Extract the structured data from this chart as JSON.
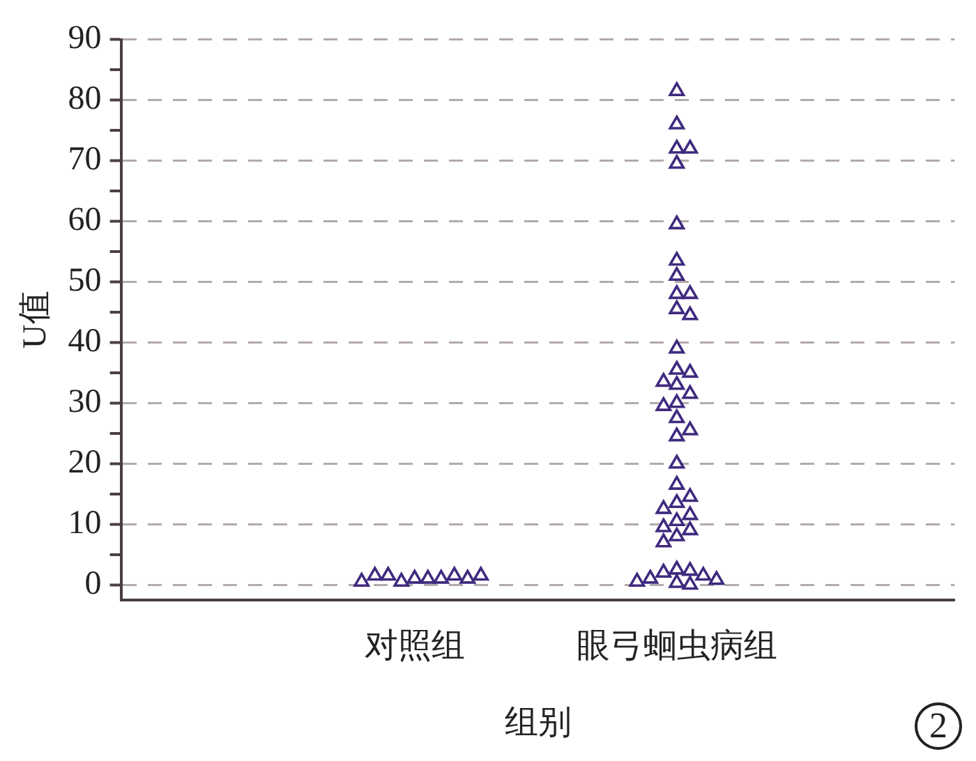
{
  "chart_data": {
    "type": "scatter",
    "xlabel": "组别",
    "ylabel": "U值",
    "categories": [
      "对照组",
      "眼弓蛔虫病组"
    ],
    "series": [
      {
        "color": "#3f2a7f",
        "x": [
          "对照组",
          "对照组",
          "对照组",
          "对照组",
          "对照组",
          "对照组",
          "对照组",
          "对照组",
          "对照组",
          "对照组"
        ],
        "values": [
          1,
          1,
          0.5,
          1,
          1.5,
          1.5,
          1.5,
          1,
          0.5,
          1.5
        ]
      },
      {
        "color": "#3f2a7f",
        "x": [
          "眼弓蛔虫病组",
          "眼弓蛔虫病组",
          "眼弓蛔虫病组",
          "眼弓蛔虫病组",
          "眼弓蛔虫病组",
          "眼弓蛔虫病组",
          "眼弓蛔虫病组",
          "眼弓蛔虫病组",
          "眼弓蛔虫病组",
          "眼弓蛔虫病组",
          "眼弓蛔虫病组",
          "眼弓蛔虫病组",
          "眼弓蛔虫病组",
          "眼弓蛔虫病组",
          "眼弓蛔虫病组",
          "眼弓蛔虫病组",
          "眼弓蛔虫病组",
          "眼弓蛔虫病组",
          "眼弓蛔虫病组",
          "眼弓蛔虫病组",
          "眼弓蛔虫病组",
          "眼弓蛔虫病组",
          "眼弓蛔虫病组",
          "眼弓蛔虫病组",
          "眼弓蛔虫病组",
          "眼弓蛔虫病组",
          "眼弓蛔虫病组",
          "眼弓蛔虫病组",
          "眼弓蛔虫病组",
          "眼弓蛔虫病组",
          "眼弓蛔虫病组",
          "眼弓蛔虫病组",
          "眼弓蛔虫病组",
          "眼弓蛔虫病组",
          "眼弓蛔虫病组",
          "眼弓蛔虫病组",
          "眼弓蛔虫病组",
          "眼弓蛔虫病组",
          "眼弓蛔虫病组",
          "眼弓蛔虫病组",
          "眼弓蛔虫病组",
          "眼弓蛔虫病组",
          "眼弓蛔虫病组"
        ],
        "values": [
          81.5,
          76,
          72,
          72,
          69.5,
          59.5,
          53.5,
          51,
          48,
          48,
          45.5,
          44.5,
          39,
          35.5,
          35,
          33.5,
          33,
          31.5,
          30,
          29.5,
          27.5,
          25.5,
          24.5,
          20,
          16.5,
          14.5,
          13.5,
          12.5,
          11.5,
          10.5,
          9.5,
          9,
          8,
          7,
          2.5,
          2.3,
          2,
          1.5,
          1,
          0.8,
          0.5,
          0.3,
          0
        ]
      }
    ],
    "ylim": [
      -2.5,
      90
    ],
    "yticks": [
      0,
      {
        "value": 5,
        "label": null
      },
      10,
      {
        "value": 15,
        "label": null
      },
      20,
      {
        "value": 25,
        "label": null
      },
      30,
      {
        "value": 35,
        "label": null
      },
      40,
      {
        "value": 45,
        "label": null
      },
      50,
      {
        "value": 55,
        "label": null
      },
      60,
      {
        "value": 65,
        "label": null
      },
      70,
      {
        "value": 75,
        "label": null
      },
      80,
      {
        "value": 85,
        "label": null
      },
      90
    ],
    "grid": "y",
    "marker": "triangle",
    "legend": false,
    "annotations": [
      "2"
    ]
  }
}
